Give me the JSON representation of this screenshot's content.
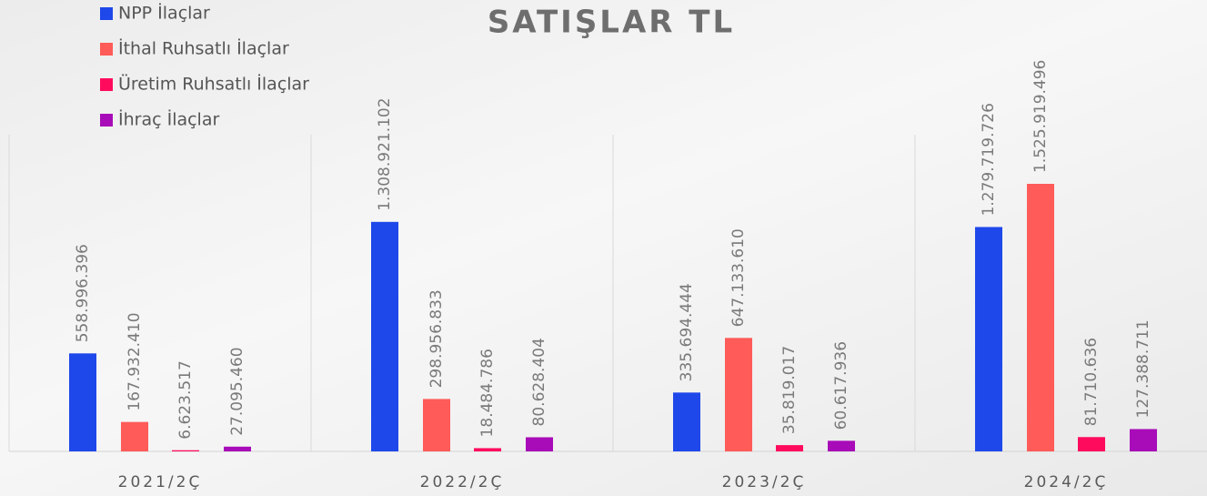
{
  "chart_data": {
    "type": "bar",
    "title": "SATIŞLAR TL",
    "categories": [
      "2021/2Ç",
      "2022/2Ç",
      "2023/2Ç",
      "2024/2Ç"
    ],
    "series": [
      {
        "name": "NPP İlaçlar",
        "color": "#1f48ea",
        "values": [
          558996396,
          1308921102,
          335694444,
          1279719726
        ],
        "value_labels": [
          "558.996.396",
          "1.308.921.102",
          "335.694.444",
          "1.279.719.726"
        ]
      },
      {
        "name": "İthal Ruhsatlı İlaçlar",
        "color": "#ff5b58",
        "values": [
          167932410,
          298956833,
          647133610,
          1525919496
        ],
        "value_labels": [
          "167.932.410",
          "298.956.833",
          "647.133.610",
          "1.525.919.496"
        ]
      },
      {
        "name": "Üretim Ruhsatlı İlaçlar",
        "color": "#ff0b5e",
        "values": [
          6623517,
          18484786,
          35819017,
          81710636
        ],
        "value_labels": [
          "6.623.517",
          "18.484.786",
          "35.819.017",
          "81.710.636"
        ]
      },
      {
        "name": "İhraç İlaçlar",
        "color": "#a70cb8",
        "values": [
          27095460,
          80628404,
          60617936,
          127388711
        ],
        "value_labels": [
          "27.095.460",
          "80.628.404",
          "60.617.936",
          "127.388.711"
        ]
      }
    ]
  }
}
